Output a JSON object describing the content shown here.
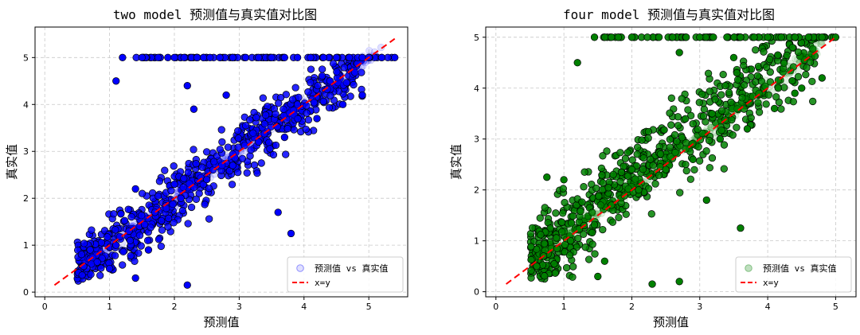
{
  "chart_data": [
    {
      "type": "scatter",
      "title": "two model 预测值与真实值对比图",
      "xlabel": "预测值",
      "ylabel": "真实值",
      "xlim": [
        -0.15,
        5.6
      ],
      "ylim": [
        -0.1,
        5.65
      ],
      "xticks": [
        0,
        1,
        2,
        3,
        4,
        5
      ],
      "yticks": [
        0,
        1,
        2,
        3,
        4,
        5
      ],
      "grid": true,
      "legend_position": "lower right",
      "point_color": "#0000ff",
      "reference_line": {
        "name": "x=y",
        "color": "#ff0000",
        "style": "dashed",
        "from": 0.15,
        "to": 5.4
      },
      "series": [
        {
          "name": "预测值 vs 真实值",
          "x": [
            1.2,
            1.5,
            1.75,
            1.9,
            2.0,
            2.15,
            2.35,
            2.45,
            2.55,
            2.7,
            2.9,
            3.1,
            3.3,
            3.5,
            3.7,
            3.9,
            4.1,
            4.3,
            4.5,
            4.7,
            4.9,
            5.0,
            5.2,
            5.4,
            1.1,
            2.2,
            2.8,
            2.3,
            1.4,
            1.4,
            1.6,
            3.8,
            4.4,
            2.2,
            1.0,
            0.6,
            0.7,
            1.1,
            1.3,
            1.7,
            2.1,
            2.5,
            2.9,
            3.3,
            3.7,
            4.2,
            4.6,
            4.9,
            3.6,
            2.0
          ],
          "y": [
            5.0,
            5.0,
            5.0,
            5.0,
            5.0,
            5.0,
            5.0,
            5.0,
            5.0,
            5.0,
            5.0,
            5.0,
            5.0,
            5.0,
            5.0,
            5.0,
            5.0,
            5.0,
            5.0,
            5.0,
            5.0,
            5.0,
            5.0,
            5.0,
            4.5,
            4.4,
            4.2,
            3.9,
            2.2,
            0.3,
            0.9,
            1.25,
            4.5,
            0.15,
            0.5,
            0.55,
            0.9,
            1.0,
            1.3,
            1.7,
            2.0,
            2.4,
            2.7,
            3.2,
            3.3,
            3.7,
            4.0,
            4.2,
            1.7,
            2.3
          ]
        }
      ]
    },
    {
      "type": "scatter",
      "title": "four model 预测值与真实值对比图",
      "xlabel": "预测值",
      "ylabel": "真实值",
      "xlim": [
        -0.15,
        5.3
      ],
      "ylim": [
        -0.1,
        5.2
      ],
      "xticks": [
        0,
        1,
        2,
        3,
        4,
        5
      ],
      "yticks": [
        0,
        1,
        2,
        3,
        4,
        5
      ],
      "grid": true,
      "legend_position": "lower right",
      "point_color": "#008000",
      "reference_line": {
        "name": "x=y",
        "color": "#ff0000",
        "style": "dashed",
        "from": 0.15,
        "to": 5.0
      },
      "series": [
        {
          "name": "预测值 vs 真实值",
          "x": [
            1.45,
            1.7,
            1.8,
            2.0,
            2.4,
            2.6,
            2.8,
            3.0,
            3.2,
            3.4,
            3.6,
            3.8,
            4.0,
            4.2,
            4.4,
            4.6,
            4.8,
            5.0,
            1.2,
            2.7,
            3.5,
            2.3,
            2.7,
            1.5,
            1.6,
            3.6,
            1.0,
            0.6,
            0.7,
            0.75,
            0.9,
            1.1,
            1.3,
            1.7,
            2.1,
            2.5,
            2.9,
            3.3,
            3.7,
            4.1,
            4.5,
            4.8,
            4.4,
            3.1,
            2.0
          ],
          "y": [
            5.0,
            5.0,
            5.0,
            5.0,
            5.0,
            5.0,
            5.0,
            5.0,
            5.0,
            5.0,
            5.0,
            5.0,
            5.0,
            5.0,
            5.0,
            5.0,
            5.0,
            5.0,
            4.5,
            4.7,
            4.6,
            0.15,
            0.2,
            0.3,
            0.6,
            1.25,
            2.2,
            0.5,
            0.7,
            2.25,
            0.85,
            1.0,
            1.3,
            1.7,
            2.0,
            2.4,
            2.6,
            3.0,
            3.2,
            3.6,
            4.0,
            4.2,
            3.9,
            1.8,
            2.4
          ]
        }
      ]
    }
  ]
}
